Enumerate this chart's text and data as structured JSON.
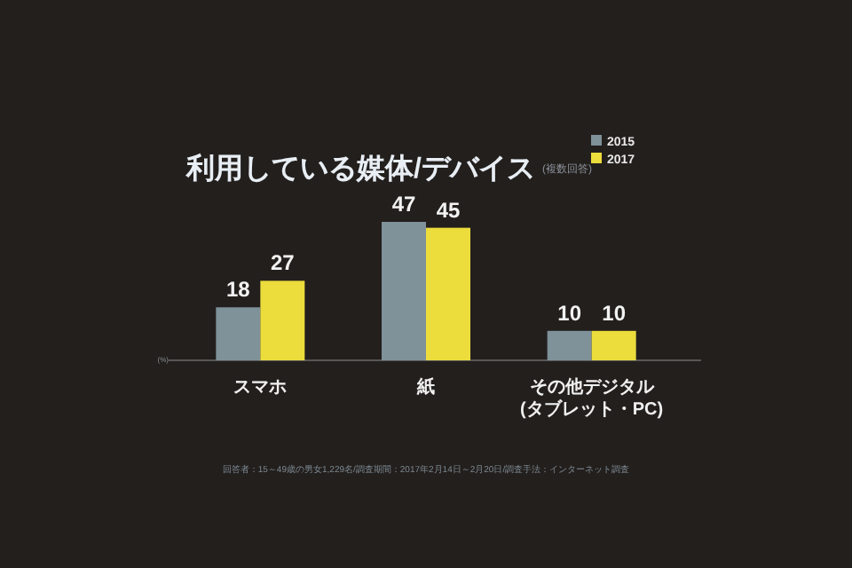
{
  "chart_data": {
    "type": "bar",
    "title": "利用している媒体/デバイス",
    "subtitle": "(複数回答)",
    "ylabel": "(%)",
    "categories": [
      "スマホ",
      "紙",
      "その他デジタル\n(タブレット・PC)"
    ],
    "series": [
      {
        "name": "2015",
        "color": "#7f9199",
        "values": [
          18,
          47,
          10
        ]
      },
      {
        "name": "2017",
        "color": "#ecdc3c",
        "values": [
          27,
          45,
          10
        ]
      }
    ],
    "data_labels": true,
    "legend": "top right",
    "annotations": [
      "回答者：15～49歳の男女1,229名/調査期間：2017年2月14日～2月20日/調査手法：インターネット調査"
    ]
  }
}
